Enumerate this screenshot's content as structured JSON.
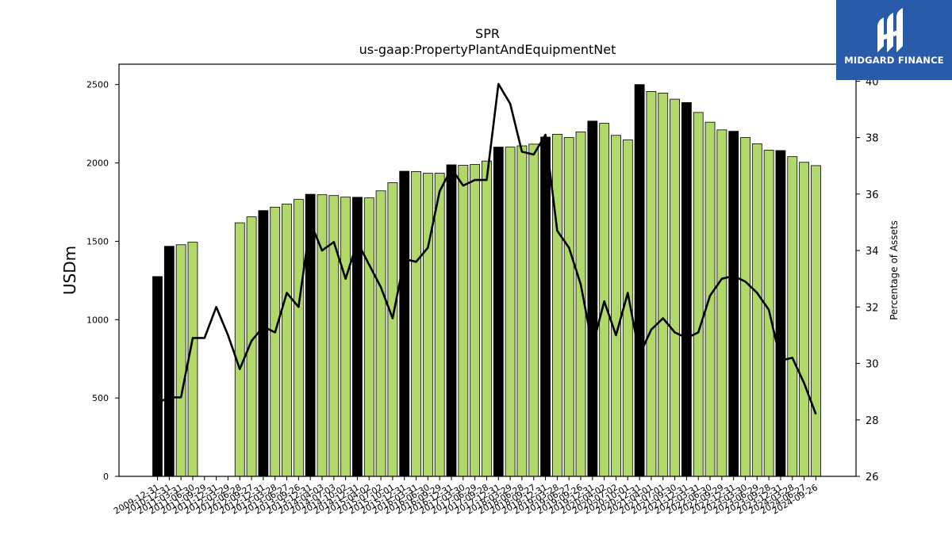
{
  "chart_data": {
    "type": "bar",
    "title": "SPR",
    "subtitle": "us-gaap:PropertyPlantAndEquipmentNet",
    "ylabel": "USDm",
    "y2label": "Percentage of Assets",
    "ylim": [
      0,
      2630
    ],
    "y2lim": [
      26,
      40.6
    ],
    "yticks": [
      0,
      500,
      1000,
      1500,
      2000,
      2500
    ],
    "y2ticks": [
      26,
      28,
      30,
      32,
      34,
      36,
      38,
      40
    ],
    "grid": false,
    "colors": {
      "annual_bar": "#000000",
      "quarter_bar": "#b0d86a",
      "line": "#000000"
    },
    "categories": [
      "2009-12-31",
      "2010-12-31",
      "2011-03-31",
      "2011-06-30",
      "2011-09-29",
      "2011-12-31",
      "2012-03-29",
      "2012-06-28",
      "2012-09-27",
      "2012-12-31",
      "2013-03-28",
      "2013-06-27",
      "2013-09-26",
      "2013-12-31",
      "2014-04-03",
      "2014-07-03",
      "2014-10-02",
      "2014-12-31",
      "2015-04-02",
      "2015-07-02",
      "2015-10-01",
      "2015-12-31",
      "2016-03-31",
      "2016-06-30",
      "2016-09-29",
      "2016-12-31",
      "2017-03-30",
      "2017-06-29",
      "2017-09-28",
      "2017-12-31",
      "2018-03-29",
      "2018-06-28",
      "2018-09-27",
      "2018-12-31",
      "2019-03-28",
      "2019-06-27",
      "2019-09-26",
      "2019-12-31",
      "2020-04-02",
      "2020-07-02",
      "2020-10-01",
      "2020-12-31",
      "2021-04-01",
      "2021-07-01",
      "2021-09-30",
      "2021-12-31",
      "2022-03-31",
      "2022-06-30",
      "2022-09-29",
      "2022-12-31",
      "2023-03-30",
      "2023-06-29",
      "2023-09-28",
      "2023-12-31",
      "2024-03-28",
      "2024-06-27",
      "2024-09-26"
    ],
    "tick_labels": [
      "2009-12-31",
      "2010-12-31",
      "2011-03-31",
      "2011-06-30",
      "2011-09-29",
      "2011-12-31",
      "2012-03-29",
      "2012-06-28",
      "2012-09-27",
      "2012-12-31",
      "2013-03-28",
      "2013-06-27",
      "2013-09-26",
      "2013-12-31",
      "2014-04-03",
      "2014-07-03",
      "2014-10-02",
      "2014-12-31",
      "2015-04-02",
      "2015-07-02",
      "2015-10-01",
      "2015-12-31",
      "2016-03-31",
      "2016-06-30",
      "2016-09-29",
      "2016-12-31",
      "2017-03-30",
      "2017-06-29",
      "2017-09-28",
      "2017-12-31",
      "2018-03-29",
      "2018-06-28",
      "2018-09-27",
      "2018-12-31",
      "2019-03-28",
      "2019-06-27",
      "2019-09-26",
      "2019-12-31",
      "2020-04-02",
      "2020-07-02",
      "2020-10-01",
      "2020-12-31",
      "2021-04-01",
      "2021-07-01",
      "2021-09-30",
      "2021-12-31",
      "2022-03-31",
      "2022-06-30",
      "2022-09-29",
      "2022-12-31",
      "2023-03-30",
      "2023-06-29",
      "2023-09-28",
      "2023-12-31",
      "2024-03-28",
      "2024-06-27",
      "2024-09-26"
    ],
    "bar_values": [
      1275,
      1468,
      1478,
      1494,
      null,
      null,
      null,
      1618,
      1656,
      1696,
      1718,
      1737,
      1767,
      1800,
      1797,
      1792,
      1782,
      1781,
      1777,
      1822,
      1874,
      1947,
      1945,
      1934,
      1935,
      1988,
      1985,
      1990,
      2012,
      2101,
      2101,
      2109,
      2120,
      2165,
      2183,
      2162,
      2198,
      2267,
      2253,
      2176,
      2147,
      2500,
      2456,
      2446,
      2407,
      2385,
      2322,
      2260,
      2211,
      2202,
      2162,
      2122,
      2081,
      2079,
      2040,
      2004,
      1983
    ],
    "bar_is_annual": [
      true,
      true,
      false,
      false,
      false,
      false,
      false,
      false,
      false,
      true,
      false,
      false,
      false,
      true,
      false,
      false,
      false,
      true,
      false,
      false,
      false,
      true,
      false,
      false,
      false,
      true,
      false,
      false,
      false,
      true,
      false,
      false,
      false,
      true,
      false,
      false,
      false,
      true,
      false,
      false,
      false,
      true,
      false,
      false,
      false,
      true,
      false,
      false,
      false,
      true,
      false,
      false,
      false,
      true,
      false,
      false,
      false
    ],
    "line_values": [
      28.6,
      28.8,
      28.8,
      30.9,
      30.9,
      32.0,
      31.0,
      29.8,
      30.8,
      31.3,
      31.1,
      32.5,
      32.0,
      35.0,
      34.0,
      34.3,
      33.0,
      34.3,
      33.5,
      32.7,
      31.6,
      33.7,
      33.6,
      34.1,
      36.1,
      36.9,
      36.3,
      36.5,
      36.5,
      39.9,
      39.2,
      37.5,
      37.4,
      38.1,
      34.7,
      34.1,
      32.8,
      30.6,
      32.2,
      31.0,
      32.5,
      30.3,
      31.2,
      31.6,
      31.1,
      30.9,
      31.1,
      32.4,
      33.0,
      33.1,
      32.9,
      32.5,
      31.9,
      30.1,
      30.2,
      29.3,
      28.2
    ]
  },
  "branding": {
    "logo_text": "MIDGARD FINANCE",
    "logo_icon": "midgard-logo-icon",
    "logo_bg": "#2a5ba8"
  }
}
